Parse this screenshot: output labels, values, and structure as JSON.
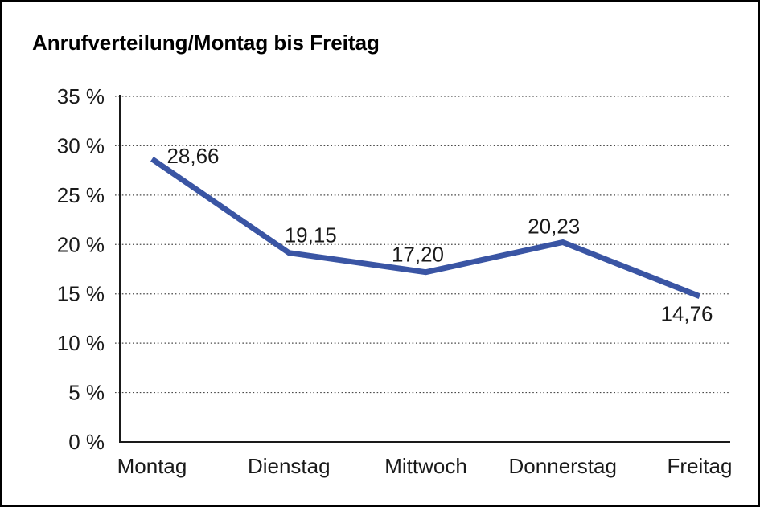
{
  "window": {
    "background": "#ffffff",
    "border_color": "#000000"
  },
  "chart_data": {
    "type": "line",
    "title": "Anrufverteilung/Montag bis Freitag",
    "categories": [
      "Montag",
      "Dienstag",
      "Mittwoch",
      "Donnerstag",
      "Freitag"
    ],
    "series": [
      {
        "name": "Anrufverteilung",
        "values": [
          28.66,
          19.15,
          17.2,
          20.23,
          14.76
        ],
        "point_labels": [
          "28,66",
          "19,15",
          "17,20",
          "20,23",
          "14,76"
        ],
        "color": "#3A55A4"
      }
    ],
    "xlabel": "",
    "ylabel": "",
    "ylim": [
      0,
      35
    ],
    "yticks": [
      0,
      5,
      10,
      15,
      20,
      25,
      30,
      35
    ],
    "ytick_labels": [
      "0 %",
      "5 %",
      "10 %",
      "15 %",
      "20 %",
      "25 %",
      "30 %",
      "35 %"
    ],
    "grid": "horizontal-dotted",
    "legend_position": "none",
    "axis_color": "#1a1a1a",
    "grid_color": "#4a4a4a",
    "label_color": "#1a1a1a"
  }
}
